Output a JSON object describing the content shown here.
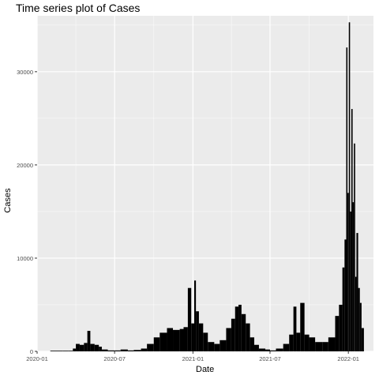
{
  "chart_data": {
    "type": "bar",
    "title": "Time series plot of Cases",
    "xlabel": "Date",
    "ylabel": "Cases",
    "xlim": [
      "2020-01-01",
      "2022-03-01"
    ],
    "ylim": [
      0,
      36000
    ],
    "x_ticks": [
      "2020-01",
      "2020-07",
      "2021-01",
      "2021-07",
      "2022-01"
    ],
    "y_ticks": [
      0,
      10000,
      20000,
      30000
    ],
    "grid": true,
    "legend": "none",
    "colors": {
      "panel": "#ebebeb",
      "grid": "#ffffff",
      "bars": "#000000",
      "tick_text": "#4d4d4d"
    },
    "series": [
      {
        "x": [
          "2020-02-01",
          "2020-03-01",
          "2020-03-15",
          "2020-03-25",
          "2020-04-01",
          "2020-04-10",
          "2020-04-20",
          "2020-04-28",
          "2020-05-05",
          "2020-05-15",
          "2020-05-25",
          "2020-06-01",
          "2020-06-15",
          "2020-07-01",
          "2020-07-15",
          "2020-08-01",
          "2020-08-15",
          "2020-09-01",
          "2020-09-15",
          "2020-10-01",
          "2020-10-15",
          "2020-11-01",
          "2020-11-15",
          "2020-12-01",
          "2020-12-10",
          "2020-12-20",
          "2020-12-28",
          "2021-01-04",
          "2021-01-08",
          "2021-01-15",
          "2021-01-25",
          "2021-02-05",
          "2021-02-20",
          "2021-03-05",
          "2021-03-20",
          "2021-04-01",
          "2021-04-10",
          "2021-04-18",
          "2021-04-25",
          "2021-05-05",
          "2021-05-15",
          "2021-05-25",
          "2021-06-05",
          "2021-06-20",
          "2021-07-01",
          "2021-07-15",
          "2021-08-01",
          "2021-08-15",
          "2021-08-25",
          "2021-09-01",
          "2021-09-10",
          "2021-09-20",
          "2021-10-01",
          "2021-10-15",
          "2021-11-01",
          "2021-11-15",
          "2021-12-01",
          "2021-12-10",
          "2021-12-18",
          "2021-12-23",
          "2021-12-27",
          "2021-12-30",
          "2022-01-02",
          "2022-01-05",
          "2022-01-08",
          "2022-01-11",
          "2022-01-14",
          "2022-01-17",
          "2022-01-20",
          "2022-01-24",
          "2022-01-28",
          "2022-02-01"
        ],
        "values": [
          0,
          0,
          30,
          300,
          800,
          700,
          900,
          2200,
          800,
          700,
          500,
          200,
          100,
          100,
          200,
          100,
          150,
          300,
          800,
          1500,
          2000,
          2500,
          2300,
          2400,
          2600,
          6800,
          3000,
          7600,
          4300,
          3000,
          2000,
          1000,
          800,
          1200,
          2500,
          3500,
          4800,
          5000,
          4000,
          3000,
          1500,
          700,
          300,
          200,
          100,
          300,
          800,
          1800,
          4800,
          2000,
          5200,
          1800,
          1500,
          1000,
          1000,
          1500,
          3800,
          5000,
          9000,
          12000,
          32600,
          17000,
          35300,
          15000,
          26000,
          16000,
          22300,
          8000,
          12700,
          6800,
          5200,
          2500
        ]
      }
    ]
  }
}
